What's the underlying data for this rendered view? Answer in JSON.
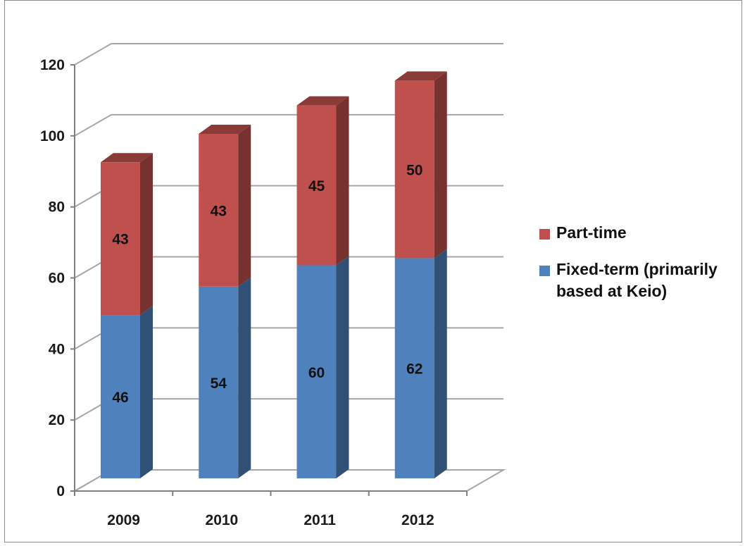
{
  "chart_data": {
    "type": "bar",
    "stacked": true,
    "three_d": true,
    "categories": [
      "2009",
      "2010",
      "2011",
      "2012"
    ],
    "series": [
      {
        "name": "Fixed-term (primarily based at Keio)",
        "values": [
          46,
          54,
          60,
          62
        ],
        "color": "#4f81bd"
      },
      {
        "name": "Part-time",
        "values": [
          43,
          43,
          45,
          50
        ],
        "color": "#c0504d"
      }
    ],
    "ylim": [
      0,
      120
    ],
    "yticks": [
      "0",
      "20",
      "40",
      "60",
      "80",
      "100",
      "120"
    ],
    "grid": true,
    "legend_position": "right"
  }
}
